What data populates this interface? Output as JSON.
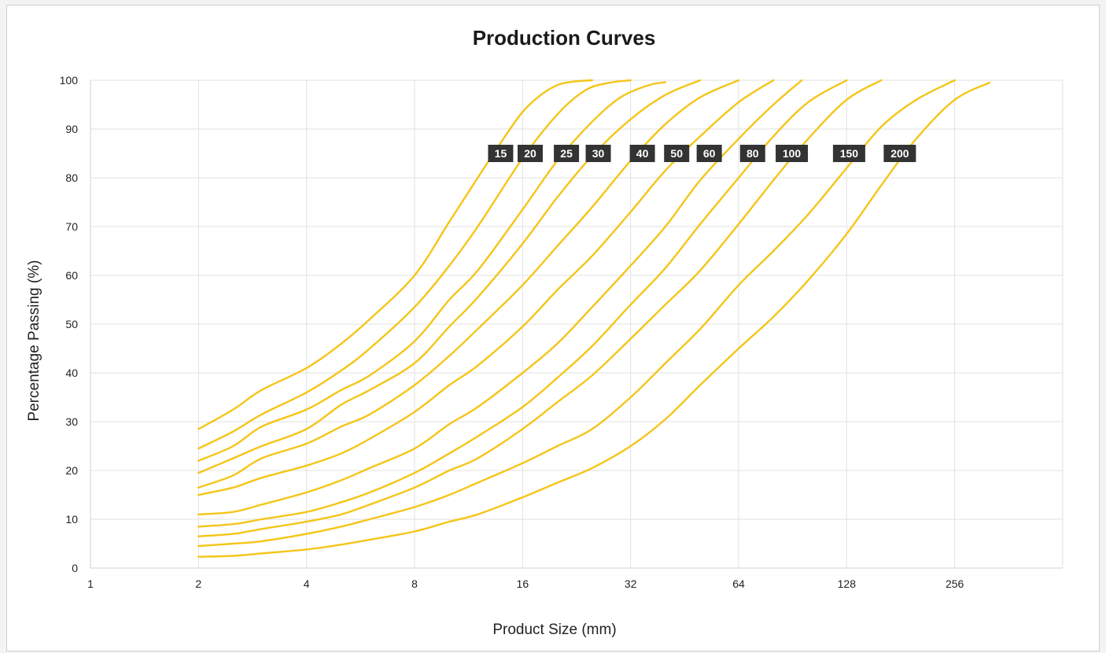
{
  "chart_data": {
    "type": "line",
    "title": "Production Curves",
    "xlabel": "Product Size (mm)",
    "ylabel": "Percentage Passing (%)",
    "x_scale": "log2",
    "xlim": [
      1,
      512
    ],
    "ylim": [
      0,
      100
    ],
    "x_ticks": [
      "1",
      "2",
      "4",
      "8",
      "16",
      "32",
      "64",
      "128",
      "256"
    ],
    "y_ticks": [
      "0",
      "10",
      "20",
      "30",
      "40",
      "50",
      "60",
      "70",
      "80",
      "90",
      "100"
    ],
    "grid": true,
    "line_color": "#f5c518",
    "label_color": "#333333",
    "series": [
      {
        "name": "15",
        "label_x": 13.9,
        "label_y": 85,
        "x": [
          2,
          2.5,
          3,
          4,
          5,
          6,
          8,
          10,
          12,
          14,
          16,
          18,
          20,
          22,
          25
        ],
        "y": [
          28.5,
          32.5,
          36.5,
          41,
          46,
          51,
          60,
          71,
          80,
          87.5,
          93.5,
          97,
          99,
          99.7,
          100
        ]
      },
      {
        "name": "20",
        "label_x": 16.8,
        "label_y": 85,
        "x": [
          2,
          2.5,
          3,
          4,
          5,
          6,
          8,
          10,
          12,
          16,
          20,
          24,
          28,
          32
        ],
        "y": [
          24.5,
          28,
          31.5,
          36,
          40.5,
          45,
          53.5,
          62,
          70,
          84,
          93,
          98,
          99.5,
          100
        ]
      },
      {
        "name": "25",
        "label_x": 21.2,
        "label_y": 85,
        "x": [
          2,
          2.5,
          3,
          4,
          5,
          6,
          8,
          10,
          12,
          16,
          20,
          25,
          30,
          36,
          40
        ],
        "y": [
          22,
          25,
          29,
          32.5,
          36.5,
          39.5,
          46.5,
          55,
          61,
          73.5,
          83.5,
          91.5,
          96.5,
          99,
          99.6
        ]
      },
      {
        "name": "30",
        "label_x": 26,
        "label_y": 85,
        "x": [
          2,
          2.5,
          3,
          4,
          5,
          6,
          8,
          10,
          12,
          16,
          20,
          25,
          32,
          40,
          50
        ],
        "y": [
          19.5,
          22.5,
          25,
          28.5,
          33.5,
          36.5,
          42,
          49.5,
          55.5,
          66.5,
          76,
          84.5,
          92,
          97,
          100
        ]
      },
      {
        "name": "40",
        "label_x": 34.5,
        "label_y": 85,
        "x": [
          2,
          2.5,
          3,
          4,
          5,
          6,
          8,
          10,
          12,
          16,
          20,
          25,
          32,
          40,
          50,
          64
        ],
        "y": [
          16.5,
          19,
          22.5,
          25.5,
          29,
          31.5,
          37.5,
          43.5,
          49,
          58,
          66,
          74,
          83.5,
          91,
          96.5,
          100
        ]
      },
      {
        "name": "50",
        "label_x": 43,
        "label_y": 85,
        "x": [
          2,
          2.5,
          3,
          4,
          5,
          6,
          8,
          10,
          12,
          16,
          20,
          25,
          32,
          40,
          50,
          64,
          80
        ],
        "y": [
          15,
          16.5,
          18.5,
          21,
          23.5,
          26.5,
          32,
          37.5,
          41.5,
          49.5,
          57,
          64,
          73,
          81.5,
          88.5,
          95.5,
          100
        ]
      },
      {
        "name": "60",
        "label_x": 53,
        "label_y": 85,
        "x": [
          2,
          2.5,
          3,
          4,
          5,
          6,
          8,
          10,
          12,
          16,
          20,
          25,
          32,
          40,
          50,
          64,
          80,
          96
        ],
        "y": [
          11,
          11.5,
          13,
          15.5,
          18,
          20.5,
          24.5,
          29.5,
          33,
          40,
          46,
          53.5,
          62,
          70,
          79.5,
          88,
          95,
          100
        ]
      },
      {
        "name": "80",
        "label_x": 70,
        "label_y": 85,
        "x": [
          2,
          2.5,
          3,
          4,
          5,
          6,
          8,
          10,
          12,
          16,
          20,
          25,
          32,
          40,
          50,
          64,
          80,
          100,
          128
        ],
        "y": [
          8.5,
          9,
          10,
          11.5,
          13.5,
          15.5,
          19.5,
          23.5,
          27,
          33,
          39,
          45.5,
          54,
          61.5,
          70.5,
          80,
          88.5,
          95.5,
          100
        ]
      },
      {
        "name": "100",
        "label_x": 90,
        "label_y": 85,
        "x": [
          2,
          2.5,
          3,
          4,
          5,
          6,
          8,
          10,
          12,
          16,
          20,
          25,
          32,
          40,
          50,
          64,
          80,
          100,
          128,
          160
        ],
        "y": [
          6.5,
          7,
          8,
          9.5,
          11,
          13,
          16.5,
          20,
          22.5,
          28.5,
          34,
          39.5,
          47,
          54,
          61,
          70.5,
          79.5,
          88,
          96,
          100
        ]
      },
      {
        "name": "150",
        "label_x": 130,
        "label_y": 85,
        "x": [
          2,
          2.5,
          3,
          4,
          5,
          6,
          8,
          10,
          12,
          16,
          20,
          25,
          32,
          40,
          50,
          64,
          80,
          100,
          128,
          160,
          200,
          256
        ],
        "y": [
          4.5,
          5,
          5.5,
          7,
          8.5,
          10,
          12.5,
          15,
          17.5,
          21.5,
          25,
          28.5,
          35,
          42,
          49,
          58,
          65,
          72.5,
          82,
          90.5,
          96,
          100
        ]
      },
      {
        "name": "200",
        "label_x": 180,
        "label_y": 85,
        "x": [
          2,
          2.5,
          3,
          4,
          5,
          6,
          8,
          10,
          12,
          16,
          20,
          25,
          32,
          40,
          50,
          64,
          80,
          100,
          128,
          160,
          200,
          256,
          320
        ],
        "y": [
          2.3,
          2.5,
          3,
          3.8,
          4.8,
          5.8,
          7.5,
          9.5,
          11,
          14.5,
          17.5,
          20.5,
          25,
          30.5,
          37.5,
          45,
          51.5,
          59,
          68.5,
          78.5,
          88,
          96,
          99.5
        ]
      }
    ]
  }
}
